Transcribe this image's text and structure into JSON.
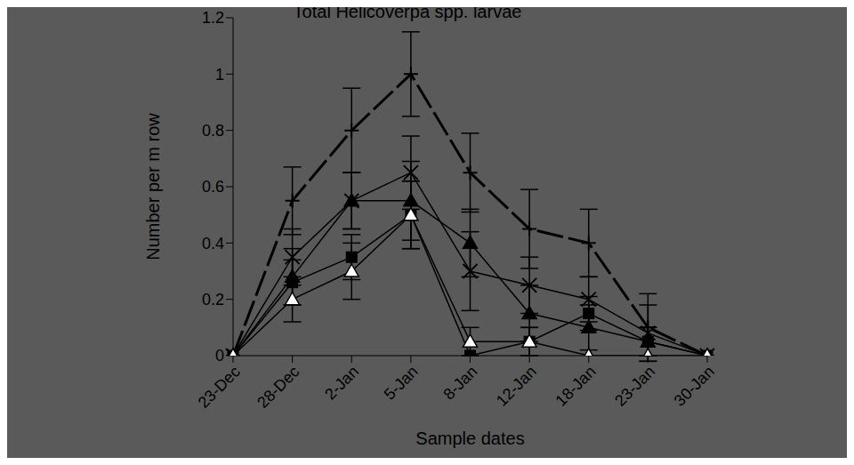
{
  "chart_data": {
    "type": "line",
    "title": "Total Helicoverpa spp. larvae",
    "x_label": "Sample dates",
    "y_label": "Number per m row",
    "categories": [
      "23-Dec",
      "28-Dec",
      "2-Jan",
      "5-Jan",
      "8-Jan",
      "12-Jan",
      "18-Jan",
      "23-Jan",
      "30-Jan"
    ],
    "ylim": [
      0,
      1.2
    ],
    "yticks": [
      0,
      0.2,
      0.4,
      0.6,
      0.8,
      1,
      1.2
    ],
    "grid": false,
    "series": [
      {
        "color": "#000000",
        "marker": "plus",
        "line_style": "dashed",
        "values": [
          0,
          0.55,
          0.8,
          1.0,
          0.65,
          0.45,
          0.4,
          0.1,
          0
        ],
        "errors": [
          null,
          0.12,
          0.15,
          0.15,
          0.14,
          0.14,
          0.12,
          0.12,
          null
        ]
      },
      {
        "color": "#000000",
        "marker": "x",
        "line_style": "solid",
        "values": [
          0,
          0.35,
          0.55,
          0.65,
          0.3,
          0.25,
          0.2,
          0.08,
          0
        ],
        "errors": [
          null,
          0.1,
          0.1,
          0.13,
          0.14,
          0.1,
          0.08,
          0.1,
          null
        ]
      },
      {
        "color": "#000000",
        "marker": "triangle",
        "line_style": "solid",
        "values": [
          0,
          0.28,
          0.55,
          0.55,
          0.4,
          0.15,
          0.1,
          0.05,
          0
        ],
        "errors": [
          null,
          0.1,
          0.1,
          0.14,
          0.12,
          0.1,
          0.08,
          0.05,
          null
        ]
      },
      {
        "color": "#000000",
        "marker": "square",
        "line_style": "solid",
        "values": [
          0,
          0.26,
          0.35,
          0.5,
          0,
          0.05,
          0.15,
          0.05,
          0
        ],
        "errors": [
          null,
          0.08,
          0.08,
          0.12,
          null,
          0.05,
          0.06,
          0.05,
          null
        ]
      },
      {
        "color": "#000000",
        "marker": "triangle-open",
        "line_style": "solid",
        "values": [
          0,
          0.2,
          0.3,
          0.5,
          0.05,
          0.05,
          0,
          0,
          0
        ],
        "errors": [
          null,
          0.08,
          0.1,
          0.12,
          0.05,
          0.05,
          null,
          null,
          null
        ]
      }
    ]
  }
}
